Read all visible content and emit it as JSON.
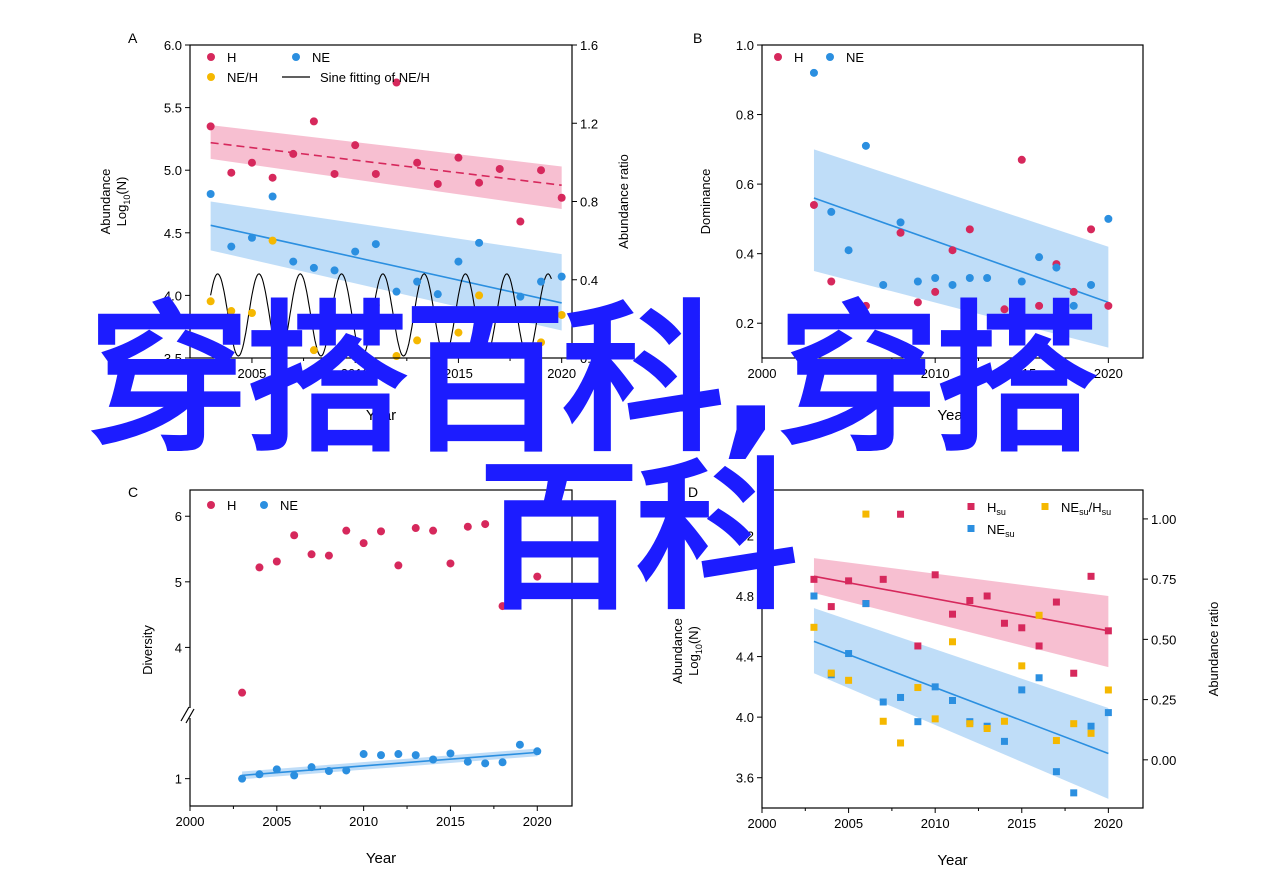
{
  "chart_data": [
    {
      "panel": "A",
      "type": "scatter",
      "xlabel": "Year",
      "ylabel_parts": [
        "Abundance",
        "Log",
        "10",
        "(N)"
      ],
      "y2label": "Abundance ratio",
      "xlim": [
        2002,
        2020.5
      ],
      "ylim": [
        3.5,
        6.0
      ],
      "y2lim": [
        0.0,
        1.6
      ],
      "xticks": [
        2005,
        2010,
        2015,
        2020
      ],
      "xtick_labels": [
        "2005",
        "2010",
        "2015",
        "2020"
      ],
      "yticks": [
        3.5,
        4.0,
        4.5,
        5.0,
        5.5,
        6.0
      ],
      "ytick_labels": [
        "3.5",
        "4.0",
        "4.5",
        "5.0",
        "5.5",
        "6.0"
      ],
      "y2ticks": [
        0.0,
        0.4,
        0.8,
        1.2,
        1.6
      ],
      "y2tick_labels": [
        "0.0",
        "0.4",
        "0.8",
        "1.2",
        "1.6"
      ],
      "legend": [
        {
          "label": "H",
          "marker": "dot",
          "color": "#d6285c"
        },
        {
          "label": "NE",
          "marker": "dot",
          "color": "#2b8fe0"
        },
        {
          "label": "NE/H",
          "marker": "dot",
          "color": "#f5b800"
        },
        {
          "label": "Sine fitting of NE/H",
          "marker": "line",
          "color": "#000000"
        }
      ],
      "series": [
        {
          "name": "H",
          "axis": "left",
          "color": "#d6285c",
          "x": [
            2003,
            2004,
            2005,
            2006,
            2007,
            2008,
            2009,
            2010,
            2011,
            2012,
            2013,
            2014,
            2015,
            2016,
            2017,
            2018,
            2019,
            2020
          ],
          "y": [
            5.35,
            4.98,
            5.06,
            4.94,
            5.13,
            5.39,
            4.97,
            5.2,
            4.97,
            5.7,
            5.06,
            4.89,
            5.1,
            4.9,
            5.01,
            4.59,
            5.0,
            4.78
          ],
          "fit": [
            5.22,
            4.88
          ],
          "band": [
            [
              5.36,
              5.03
            ],
            [
              5.09,
              4.69
            ]
          ],
          "band_color": "#f4a9c1",
          "fit_style": "dashed"
        },
        {
          "name": "NE",
          "axis": "left",
          "color": "#2b8fe0",
          "x": [
            2003,
            2004,
            2005,
            2006,
            2007,
            2008,
            2009,
            2010,
            2011,
            2012,
            2013,
            2014,
            2015,
            2016,
            2017,
            2018,
            2019,
            2020
          ],
          "y": [
            4.81,
            4.39,
            4.46,
            4.79,
            4.27,
            4.22,
            4.2,
            4.35,
            4.41,
            4.03,
            4.11,
            4.01,
            4.27,
            4.42,
            3.84,
            3.99,
            4.11,
            4.15
          ],
          "fit": [
            4.56,
            3.94
          ],
          "band": [
            [
              4.75,
              4.33
            ],
            [
              4.36,
              3.72
            ]
          ],
          "band_color": "#a9d2f5",
          "fit_style": "solid"
        },
        {
          "name": "NE/H",
          "axis": "right",
          "color": "#f5b800",
          "x": [
            2003,
            2004,
            2005,
            2006,
            2007,
            2008,
            2009,
            2010,
            2011,
            2012,
            2013,
            2014,
            2015,
            2016,
            2017,
            2018,
            2019,
            2020
          ],
          "y": [
            0.29,
            0.24,
            0.23,
            0.6,
            0.09,
            0.04,
            0.16,
            0.17,
            0.27,
            0.01,
            0.09,
            0.06,
            0.13,
            0.32,
            0.05,
            0.03,
            0.08,
            0.22
          ]
        }
      ],
      "sine": {
        "axis": "right",
        "x_start": 2003,
        "x_end": 2019.5,
        "mean": 0.22,
        "amplitude": 0.21,
        "period": 2.0,
        "phase": 0.5
      }
    },
    {
      "panel": "B",
      "type": "scatter",
      "xlabel": "Year",
      "ylabel": "Dominance",
      "xlim": [
        2000,
        2022
      ],
      "ylim": [
        0.1,
        1.0
      ],
      "xticks": [
        2000,
        2010,
        2015,
        2020
      ],
      "xtick_labels": [
        "2000",
        "2010",
        "2015",
        "2020"
      ],
      "yticks": [
        0.2,
        0.4,
        0.6,
        0.8,
        1.0
      ],
      "ytick_labels": [
        "0.2",
        "0.4",
        "0.6",
        "0.8",
        "1.0"
      ],
      "legend": [
        {
          "label": "H",
          "marker": "dot",
          "color": "#d6285c"
        },
        {
          "label": "NE",
          "marker": "dot",
          "color": "#2b8fe0"
        }
      ],
      "series": [
        {
          "name": "H",
          "color": "#d6285c",
          "x": [
            2003,
            2004,
            2006,
            2008,
            2009,
            2010,
            2011,
            2012,
            2014,
            2015,
            2016,
            2017,
            2018,
            2019,
            2020
          ],
          "y": [
            0.54,
            0.32,
            0.25,
            0.46,
            0.26,
            0.29,
            0.41,
            0.47,
            0.24,
            0.67,
            0.25,
            0.37,
            0.29,
            0.47,
            0.25
          ]
        },
        {
          "name": "NE",
          "color": "#2b8fe0",
          "x": [
            2003,
            2004,
            2005,
            2006,
            2007,
            2008,
            2009,
            2010,
            2011,
            2012,
            2013,
            2015,
            2016,
            2017,
            2018,
            2019,
            2020
          ],
          "y": [
            0.92,
            0.52,
            0.41,
            0.71,
            0.31,
            0.49,
            0.32,
            0.33,
            0.31,
            0.33,
            0.33,
            0.32,
            0.39,
            0.36,
            0.25,
            0.31,
            0.5
          ],
          "fit": [
            0.56,
            0.26
          ],
          "band": [
            [
              0.7,
              0.42
            ],
            [
              0.35,
              0.13
            ]
          ],
          "band_color": "#a9d2f5",
          "fit_style": "solid"
        }
      ],
      "fit_x": [
        2003,
        2020
      ]
    },
    {
      "panel": "C",
      "type": "scatter",
      "xlabel": "Year",
      "ylabel": "Diversity",
      "xlim": [
        2000,
        2022
      ],
      "xticks": [
        2000,
        2005,
        2010,
        2015,
        2020
      ],
      "xtick_labels": [
        "2000",
        "2005",
        "2010",
        "2015",
        "2020"
      ],
      "yticks": [
        1,
        4,
        5,
        6
      ],
      "ytick_labels": [
        "1",
        "4",
        "5",
        "6"
      ],
      "axis_break": true,
      "upper_ylim": [
        3.0,
        6.4
      ],
      "lower_ylim": [
        0.5,
        2.2
      ],
      "legend": [
        {
          "label": "H",
          "marker": "dot",
          "color": "#d6285c"
        },
        {
          "label": "NE",
          "marker": "dot",
          "color": "#2b8fe0"
        }
      ],
      "series": [
        {
          "name": "H",
          "color": "#d6285c",
          "x": [
            2003,
            2004,
            2005,
            2006,
            2007,
            2008,
            2009,
            2010,
            2011,
            2012,
            2013,
            2014,
            2015,
            2016,
            2017,
            2018,
            2020
          ],
          "y": [
            3.31,
            5.22,
            5.31,
            5.71,
            5.42,
            5.4,
            5.78,
            5.59,
            5.77,
            5.25,
            5.82,
            5.78,
            5.28,
            5.84,
            5.88,
            4.63,
            5.08
          ]
        },
        {
          "name": "NE",
          "color": "#2b8fe0",
          "x": [
            2003,
            2004,
            2005,
            2006,
            2007,
            2008,
            2009,
            2010,
            2011,
            2012,
            2013,
            2014,
            2015,
            2016,
            2017,
            2018,
            2019,
            2020
          ],
          "y": [
            1.0,
            1.08,
            1.17,
            1.06,
            1.21,
            1.14,
            1.15,
            1.45,
            1.43,
            1.45,
            1.43,
            1.35,
            1.46,
            1.31,
            1.28,
            1.3,
            1.62,
            1.5
          ],
          "fit": [
            1.06,
            1.48
          ],
          "band": [
            [
              1.13,
              1.55
            ],
            [
              0.99,
              1.41
            ]
          ],
          "band_color": "#a9d2f5",
          "fit_style": "solid"
        }
      ],
      "fit_x": [
        2003,
        2020
      ]
    },
    {
      "panel": "D",
      "type": "scatter",
      "xlabel": "Year",
      "ylabel_parts": [
        "Abundance",
        "Log",
        "10",
        "(N)"
      ],
      "y2label": "Abundance ratio",
      "xlim": [
        2000,
        2022
      ],
      "ylim": [
        3.4,
        5.5
      ],
      "y2lim": [
        -0.2,
        1.12
      ],
      "xticks": [
        2000,
        2005,
        2010,
        2015,
        2020
      ],
      "xtick_labels": [
        "2000",
        "2005",
        "2010",
        "2015",
        "2020"
      ],
      "yticks": [
        3.6,
        4.0,
        4.4,
        4.8,
        5.2
      ],
      "ytick_labels": [
        "3.6",
        "4.0",
        "4.4",
        "4.8",
        "5.2"
      ],
      "y2ticks": [
        0.0,
        0.25,
        0.5,
        0.75,
        1.0
      ],
      "y2tick_labels": [
        "0.00",
        "0.25",
        "0.50",
        "0.75",
        "1.00"
      ],
      "legend": [
        {
          "label": "H",
          "sub": "su",
          "marker": "square",
          "color": "#d6285c"
        },
        {
          "label": "NE",
          "sub": "su",
          "marker": "square",
          "color": "#2b8fe0"
        },
        {
          "label": "NE",
          "sub": "su",
          "label2": "/H",
          "sub2": "su",
          "marker": "square",
          "color": "#f5b800"
        }
      ],
      "series": [
        {
          "name": "H",
          "axis": "left",
          "color": "#d6285c",
          "x": [
            2003,
            2004,
            2005,
            2006,
            2007,
            2008,
            2009,
            2010,
            2011,
            2012,
            2013,
            2014,
            2015,
            2016,
            2017,
            2018,
            2019,
            2020
          ],
          "y": [
            4.91,
            4.73,
            4.9,
            4.75,
            4.91,
            5.34,
            4.47,
            4.94,
            4.68,
            4.77,
            4.8,
            4.62,
            4.59,
            4.47,
            4.76,
            4.29,
            4.93,
            4.57
          ],
          "fit": [
            4.93,
            4.57
          ],
          "band": [
            [
              5.05,
              4.8
            ],
            [
              4.82,
              4.33
            ]
          ],
          "band_color": "#f4a9c1",
          "fit_style": "solid"
        },
        {
          "name": "NE",
          "axis": "left",
          "color": "#2b8fe0",
          "x": [
            2003,
            2004,
            2005,
            2006,
            2007,
            2008,
            2009,
            2010,
            2011,
            2012,
            2013,
            2014,
            2015,
            2016,
            2017,
            2018,
            2019,
            2020
          ],
          "y": [
            4.8,
            4.28,
            4.42,
            4.75,
            4.1,
            4.13,
            3.97,
            4.2,
            4.11,
            3.97,
            3.94,
            3.84,
            4.18,
            4.26,
            3.64,
            3.5,
            3.94,
            4.03
          ],
          "fit": [
            4.5,
            3.76
          ],
          "band": [
            [
              4.72,
              4.06
            ],
            [
              4.29,
              3.46
            ]
          ],
          "band_color": "#a9d2f5",
          "fit_style": "solid"
        },
        {
          "name": "NE/H",
          "axis": "right",
          "color": "#f5b800",
          "x": [
            2003,
            2004,
            2005,
            2006,
            2007,
            2008,
            2009,
            2010,
            2011,
            2012,
            2013,
            2014,
            2015,
            2016,
            2017,
            2018,
            2019,
            2020
          ],
          "y": [
            0.55,
            0.36,
            0.33,
            1.02,
            0.16,
            0.07,
            0.3,
            0.17,
            0.49,
            0.15,
            0.13,
            0.16,
            0.39,
            0.6,
            0.08,
            0.15,
            0.11,
            0.29
          ]
        }
      ],
      "fit_x": [
        2003,
        2020
      ]
    }
  ],
  "panel_labels": [
    "A",
    "B",
    "C",
    "D"
  ],
  "watermark": {
    "line1": "穿搭百科,穿搭",
    "line2": "百科",
    "color": "#1c1cff"
  }
}
